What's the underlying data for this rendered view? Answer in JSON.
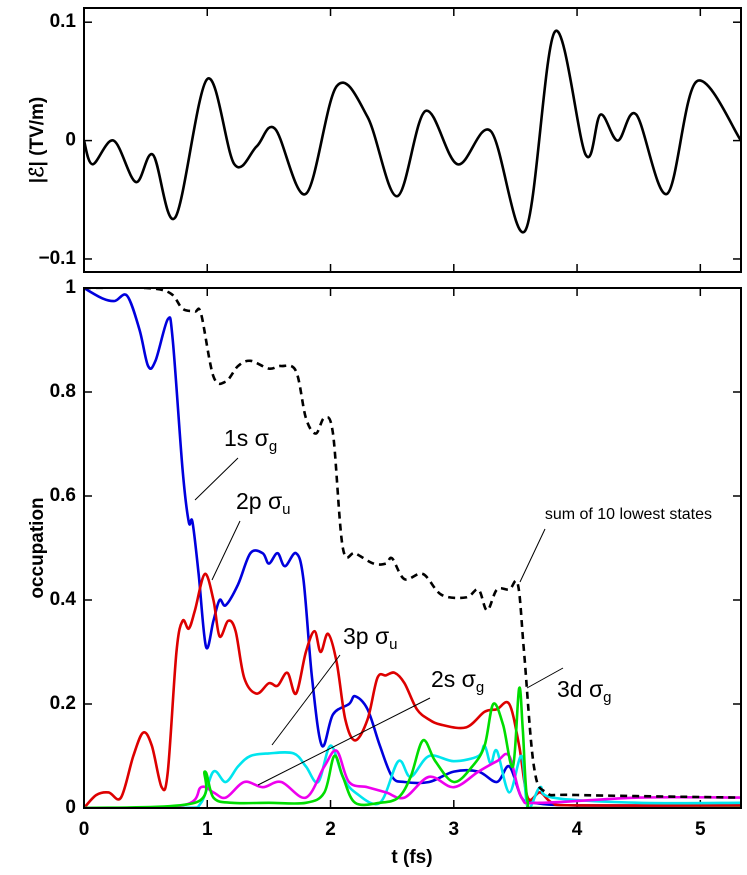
{
  "chart_data": [
    {
      "type": "line",
      "ylabel": "|ℰ|  (TV/m)",
      "xlim": [
        0,
        5.33
      ],
      "xticks": [
        0,
        1,
        2,
        3,
        4,
        5
      ],
      "ylim": [
        -0.111,
        0.112
      ],
      "yticks": [
        {
          "value": -0.1,
          "label": "−0.1"
        },
        0,
        0.1
      ],
      "series": [
        {
          "color": "#000000",
          "x": [
            0,
            0.07,
            0.24,
            0.42,
            0.56,
            0.74,
            1.0,
            1.22,
            1.4,
            1.55,
            1.8,
            2.05,
            2.3,
            2.54,
            2.77,
            3.03,
            3.3,
            3.58,
            3.82,
            4.07,
            4.19,
            4.33,
            4.48,
            4.73,
            4.97,
            5.33
          ],
          "values": [
            0,
            -0.02,
            0,
            -0.035,
            -0.012,
            -0.065,
            0.052,
            -0.02,
            -0.005,
            0.01,
            -0.045,
            0.046,
            0.02,
            -0.047,
            0.025,
            -0.02,
            0.008,
            -0.076,
            0.092,
            -0.012,
            0.022,
            0.0,
            0.022,
            -0.045,
            0.05,
            0.0
          ]
        }
      ]
    },
    {
      "type": "line",
      "xlabel": "t (fs)",
      "ylabel": "occupation",
      "xlim": [
        0,
        5.33
      ],
      "xticks": [
        0,
        1,
        2,
        3,
        4,
        5
      ],
      "ylim": [
        0,
        1
      ],
      "yticks": [
        0,
        0.2,
        0.4,
        0.6,
        0.8,
        1
      ],
      "series": [
        {
          "name": "1s σ",
          "name_sub": "g",
          "color": "#0000dd",
          "x": [
            0,
            0.15,
            0.25,
            0.35,
            0.45,
            0.52,
            0.58,
            0.68,
            0.72,
            0.8,
            0.85,
            0.88,
            0.93,
            0.99,
            1.05,
            1.1,
            1.15,
            1.25,
            1.35,
            1.45,
            1.5,
            1.57,
            1.63,
            1.72,
            1.78,
            1.85,
            1.93,
            2.02,
            2.15,
            2.2,
            2.3,
            2.4,
            2.5,
            2.6,
            2.8,
            3.0,
            3.2,
            3.35,
            3.45,
            3.55,
            3.65,
            4.0,
            5.33
          ],
          "values": [
            1,
            0.98,
            0.975,
            0.985,
            0.92,
            0.85,
            0.86,
            0.94,
            0.9,
            0.65,
            0.55,
            0.55,
            0.45,
            0.31,
            0.36,
            0.4,
            0.39,
            0.43,
            0.49,
            0.49,
            0.47,
            0.49,
            0.465,
            0.49,
            0.44,
            0.25,
            0.12,
            0.18,
            0.2,
            0.215,
            0.19,
            0.12,
            0.06,
            0.05,
            0.05,
            0.07,
            0.07,
            0.05,
            0.08,
            0.02,
            0.01,
            0.005,
            0.005
          ]
        },
        {
          "name": "2p σ",
          "name_sub": "u",
          "color": "#dd0000",
          "x": [
            0,
            0.1,
            0.2,
            0.3,
            0.4,
            0.48,
            0.55,
            0.63,
            0.68,
            0.75,
            0.8,
            0.85,
            0.9,
            0.98,
            1.05,
            1.1,
            1.17,
            1.23,
            1.3,
            1.4,
            1.5,
            1.57,
            1.65,
            1.72,
            1.8,
            1.87,
            1.92,
            1.98,
            2.05,
            2.12,
            2.2,
            2.3,
            2.38,
            2.45,
            2.52,
            2.6,
            2.7,
            2.8,
            2.9,
            3.1,
            3.25,
            3.35,
            3.45,
            3.53,
            3.6,
            3.7,
            3.8,
            4.0,
            5.33
          ],
          "values": [
            0,
            0.025,
            0.03,
            0.02,
            0.1,
            0.145,
            0.12,
            0.04,
            0.07,
            0.3,
            0.36,
            0.345,
            0.38,
            0.45,
            0.4,
            0.33,
            0.36,
            0.34,
            0.25,
            0.22,
            0.24,
            0.235,
            0.26,
            0.22,
            0.3,
            0.34,
            0.3,
            0.335,
            0.28,
            0.17,
            0.13,
            0.17,
            0.25,
            0.255,
            0.26,
            0.24,
            0.19,
            0.17,
            0.16,
            0.155,
            0.185,
            0.19,
            0.2,
            0.12,
            0.02,
            0.03,
            0.01,
            0.005,
            0.005
          ]
        },
        {
          "name": "3p σ",
          "name_sub": "u",
          "color": "#00e5ee",
          "x": [
            0,
            0.8,
            0.95,
            1.05,
            1.15,
            1.25,
            1.35,
            1.5,
            1.7,
            1.8,
            1.9,
            2.0,
            2.1,
            2.2,
            2.4,
            2.55,
            2.65,
            2.8,
            3.0,
            3.2,
            3.25,
            3.3,
            3.35,
            3.45,
            3.55,
            3.6,
            3.7,
            3.8,
            4.5,
            5.33
          ],
          "values": [
            0,
            0,
            0.01,
            0.07,
            0.05,
            0.08,
            0.1,
            0.105,
            0.105,
            0.08,
            0.05,
            0.12,
            0.06,
            0.03,
            0.01,
            0.09,
            0.06,
            0.1,
            0.09,
            0.1,
            0.12,
            0.085,
            0.11,
            0.03,
            0.1,
            0,
            0.04,
            0.02,
            0.01,
            0.01
          ]
        },
        {
          "name": "2s σ",
          "name_sub": "g",
          "color": "#ee00ee",
          "x": [
            0,
            0.8,
            0.95,
            1.05,
            1.15,
            1.3,
            1.45,
            1.6,
            1.8,
            1.95,
            2.05,
            2.15,
            2.3,
            2.45,
            2.6,
            2.8,
            3.0,
            3.2,
            3.35,
            3.45,
            3.55,
            3.7,
            4.5,
            5.33
          ],
          "values": [
            0,
            0.005,
            0.04,
            0.03,
            0.02,
            0.05,
            0.04,
            0.05,
            0.02,
            0.08,
            0.11,
            0.05,
            0.04,
            0.03,
            0.02,
            0.06,
            0.04,
            0.07,
            0.09,
            0.1,
            0.02,
            0.01,
            0.02,
            0.02
          ]
        },
        {
          "name": "3d σ",
          "name_sub": "g",
          "color": "#00dd00",
          "x": [
            0,
            0.9,
            0.98,
            1.05,
            1.2,
            1.5,
            1.8,
            1.95,
            2.03,
            2.1,
            2.2,
            2.4,
            2.55,
            2.65,
            2.75,
            2.85,
            3.0,
            3.15,
            3.25,
            3.32,
            3.4,
            3.48,
            3.53,
            3.56,
            3.6,
            3.7,
            5.33
          ],
          "values": [
            0,
            0.01,
            0.07,
            0.02,
            0.01,
            0.01,
            0.01,
            0.03,
            0.1,
            0.06,
            0.01,
            0.01,
            0.02,
            0.06,
            0.13,
            0.09,
            0.05,
            0.08,
            0.12,
            0.2,
            0.16,
            0.08,
            0.23,
            0.15,
            0.01,
            0,
            0
          ]
        },
        {
          "name": "sum of 10 lowest states",
          "color": "#000000",
          "dashed": true,
          "x": [
            0,
            0.5,
            0.7,
            0.8,
            0.9,
            0.95,
            1.05,
            1.15,
            1.25,
            1.35,
            1.5,
            1.6,
            1.72,
            1.8,
            1.88,
            1.95,
            2.02,
            2.1,
            2.2,
            2.35,
            2.45,
            2.5,
            2.6,
            2.75,
            2.9,
            3.1,
            3.2,
            3.27,
            3.35,
            3.45,
            3.52,
            3.57,
            3.65,
            3.75,
            4.0,
            5.33
          ],
          "values": [
            1,
            1,
            0.99,
            0.96,
            0.955,
            0.95,
            0.83,
            0.82,
            0.85,
            0.86,
            0.845,
            0.85,
            0.84,
            0.75,
            0.72,
            0.75,
            0.72,
            0.5,
            0.49,
            0.47,
            0.47,
            0.48,
            0.44,
            0.45,
            0.41,
            0.405,
            0.42,
            0.38,
            0.42,
            0.42,
            0.43,
            0.3,
            0.08,
            0.03,
            0.025,
            0.02
          ]
        }
      ]
    }
  ]
}
